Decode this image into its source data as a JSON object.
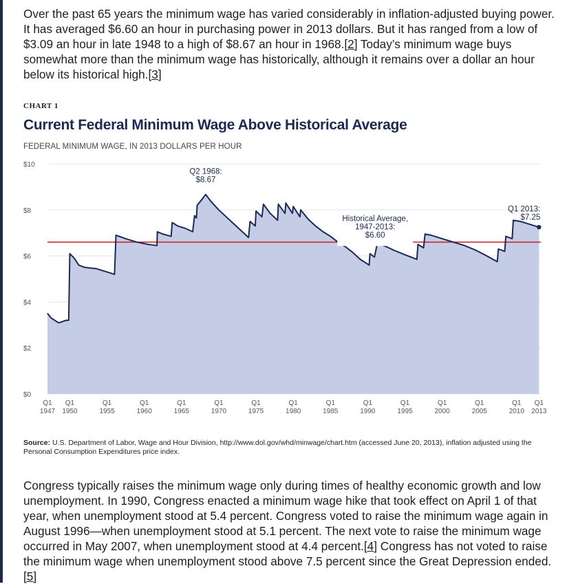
{
  "article": {
    "para1": {
      "text": "Over the past 65 years the minimum wage has varied considerably in inflation-adjusted buying power. It has averaged $6.60 an hour in purchasing power in 2013 dollars. But it has ranged from a low of $3.09 an hour in late 1948 to a high of $8.67 an hour in 1968.",
      "ref2": "[2]",
      "text2": " Today’s minimum wage buys somewhat more than the minimum wage has historically, although it remains over a dollar an hour below its historical high.",
      "ref3": "[3]"
    },
    "para2": {
      "text": "Congress typically raises the minimum wage only during times of healthy economic growth and low unemployment. In 1990, Congress enacted a minimum wage hike that took effect on April 1 of that year, when unemployment stood at 5.4 percent. Congress voted to raise the minimum wage again in August 1996—when unemployment stood at 5.1 percent. The next vote to raise the minimum wage occurred in May 2007, when unemployment stood at 4.4 percent.",
      "ref4": "[4]",
      "text2": " Congress has not voted to raise the minimum wage when unemployment stood above 7.5 percent since the Great Depression ended.",
      "ref5": "[5]"
    }
  },
  "chart_label": "CHART 1",
  "source": {
    "label": "Source:",
    "text": " U.S. Department of Labor, Wage and Hour Division, http://www.dol.gov/whd/minwage/chart.htm (accessed June 20, 2013), inflation adjusted using the Personal Consumption Expenditures price index."
  },
  "colors": {
    "area_fill": "#c5cce6",
    "line": "#1a2a55",
    "average_line": "#c8262c",
    "grid": "#e3e6ee",
    "title": "#1a2a55"
  },
  "chart_data": {
    "type": "area",
    "title": "Current Federal Minimum Wage Above Historical Average",
    "subtitle": "FEDERAL MINIMUM WAGE, IN 2013 DOLLARS PER HOUR",
    "xlabel": "",
    "ylabel": "",
    "xlim": [
      1947,
      2013.25
    ],
    "ylim": [
      0,
      10
    ],
    "yticks": [
      {
        "value": 0,
        "label": "$0"
      },
      {
        "value": 2,
        "label": "$2"
      },
      {
        "value": 4,
        "label": "$4"
      },
      {
        "value": 6,
        "label": "$6"
      },
      {
        "value": 8,
        "label": "$8"
      },
      {
        "value": 10,
        "label": "$10"
      }
    ],
    "xticks": [
      {
        "value": 1947,
        "line1": "Q1",
        "line2": "1947"
      },
      {
        "value": 1950,
        "line1": "Q1",
        "line2": "1950"
      },
      {
        "value": 1955,
        "line1": "Q1",
        "line2": "1955"
      },
      {
        "value": 1960,
        "line1": "Q1",
        "line2": "1960"
      },
      {
        "value": 1965,
        "line1": "Q1",
        "line2": "1965"
      },
      {
        "value": 1970,
        "line1": "Q1",
        "line2": "1970"
      },
      {
        "value": 1975,
        "line1": "Q1",
        "line2": "1975"
      },
      {
        "value": 1980,
        "line1": "Q1",
        "line2": "1980"
      },
      {
        "value": 1985,
        "line1": "Q1",
        "line2": "1985"
      },
      {
        "value": 1990,
        "line1": "Q1",
        "line2": "1990"
      },
      {
        "value": 1995,
        "line1": "Q1",
        "line2": "1995"
      },
      {
        "value": 2000,
        "line1": "Q1",
        "line2": "2000"
      },
      {
        "value": 2005,
        "line1": "Q1",
        "line2": "2005"
      },
      {
        "value": 2010,
        "line1": "Q1",
        "line2": "2010"
      },
      {
        "value": 2013,
        "line1": "Q1",
        "line2": "2013"
      }
    ],
    "grid": true,
    "series": [
      {
        "values": [
          [
            1947.0,
            3.5
          ],
          [
            1947.5,
            3.3
          ],
          [
            1948.5,
            3.09
          ],
          [
            1949.5,
            3.2
          ],
          [
            1949.85,
            3.2
          ],
          [
            1950.0,
            6.1
          ],
          [
            1950.6,
            5.9
          ],
          [
            1951.2,
            5.6
          ],
          [
            1952.0,
            5.5
          ],
          [
            1953.5,
            5.45
          ],
          [
            1955.0,
            5.3
          ],
          [
            1956.0,
            5.2
          ],
          [
            1956.2,
            6.9
          ],
          [
            1957.5,
            6.75
          ],
          [
            1959.0,
            6.6
          ],
          [
            1960.5,
            6.5
          ],
          [
            1961.7,
            6.45
          ],
          [
            1961.75,
            7.05
          ],
          [
            1962.5,
            6.95
          ],
          [
            1963.6,
            6.85
          ],
          [
            1963.75,
            7.45
          ],
          [
            1964.5,
            7.3
          ],
          [
            1965.5,
            7.2
          ],
          [
            1966.5,
            7.05
          ],
          [
            1966.75,
            7.75
          ],
          [
            1967.0,
            7.65
          ],
          [
            1967.1,
            8.2
          ],
          [
            1967.6,
            8.4
          ],
          [
            1968.25,
            8.67
          ],
          [
            1969.0,
            8.35
          ],
          [
            1970.0,
            8.0
          ],
          [
            1971.0,
            7.7
          ],
          [
            1972.0,
            7.4
          ],
          [
            1973.0,
            7.1
          ],
          [
            1974.0,
            6.8
          ],
          [
            1974.2,
            7.5
          ],
          [
            1974.9,
            7.3
          ],
          [
            1975.0,
            7.95
          ],
          [
            1975.8,
            7.7
          ],
          [
            1976.0,
            8.25
          ],
          [
            1976.9,
            7.85
          ],
          [
            1977.9,
            7.55
          ],
          [
            1978.0,
            8.25
          ],
          [
            1978.9,
            7.85
          ],
          [
            1979.0,
            8.3
          ],
          [
            1979.9,
            7.85
          ],
          [
            1980.0,
            8.15
          ],
          [
            1980.9,
            7.7
          ],
          [
            1981.0,
            8.0
          ],
          [
            1982.0,
            7.6
          ],
          [
            1983.0,
            7.3
          ],
          [
            1984.0,
            7.05
          ],
          [
            1985.0,
            6.85
          ],
          [
            1986.0,
            6.6
          ],
          [
            1987.0,
            6.4
          ],
          [
            1988.0,
            6.15
          ],
          [
            1989.0,
            5.85
          ],
          [
            1990.2,
            5.6
          ],
          [
            1990.3,
            6.1
          ],
          [
            1990.9,
            5.95
          ],
          [
            1991.3,
            6.55
          ],
          [
            1992.5,
            6.4
          ],
          [
            1993.5,
            6.25
          ],
          [
            1995.0,
            6.05
          ],
          [
            1996.6,
            5.85
          ],
          [
            1996.75,
            6.5
          ],
          [
            1997.5,
            6.35
          ],
          [
            1997.7,
            6.95
          ],
          [
            1998.5,
            6.9
          ],
          [
            2000.0,
            6.75
          ],
          [
            2001.5,
            6.6
          ],
          [
            2003.0,
            6.45
          ],
          [
            2004.5,
            6.25
          ],
          [
            2006.0,
            6.0
          ],
          [
            2007.4,
            5.75
          ],
          [
            2007.55,
            6.3
          ],
          [
            2008.4,
            6.2
          ],
          [
            2008.55,
            6.85
          ],
          [
            2009.4,
            6.75
          ],
          [
            2009.55,
            7.55
          ],
          [
            2010.5,
            7.5
          ],
          [
            2011.5,
            7.4
          ],
          [
            2012.5,
            7.3
          ],
          [
            2013.0,
            7.25
          ]
        ]
      }
    ],
    "average": {
      "value": 6.6
    },
    "annotations": [
      {
        "x": 1968.25,
        "y": 8.67,
        "lines": [
          "Q2 1968:",
          "$8.67"
        ],
        "anchor": "middle"
      },
      {
        "x": 1991.0,
        "y": 7.45,
        "lines": [
          "Historical Average,",
          "1947-2013:",
          "$6.60"
        ],
        "anchor": "middle"
      },
      {
        "x": 2013.0,
        "y": 7.25,
        "lines": [
          "Q1 2013:",
          "$7.25"
        ],
        "anchor": "end"
      }
    ]
  }
}
